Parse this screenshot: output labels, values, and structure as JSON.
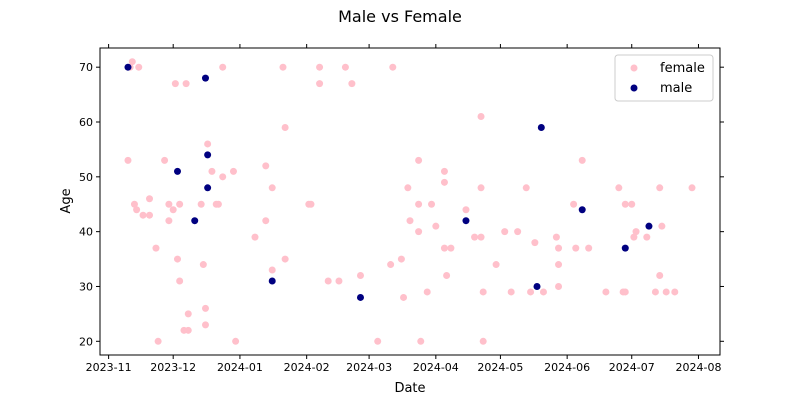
{
  "chart_data": {
    "type": "scatter",
    "title": "Male vs Female",
    "xlabel": "Date",
    "ylabel": "Age",
    "xlim": [
      "2023-10-28",
      "2024-08-11"
    ],
    "ylim": [
      17.5,
      73.5
    ],
    "x_ticks": [
      "2023-11-01",
      "2023-12-01",
      "2024-01-01",
      "2024-02-01",
      "2024-03-01",
      "2024-04-01",
      "2024-05-01",
      "2024-06-01",
      "2024-07-01",
      "2024-08-01"
    ],
    "x_tick_labels": [
      "2023-11",
      "2023-12",
      "2024-01",
      "2024-02",
      "2024-03",
      "2024-04",
      "2024-05",
      "2024-06",
      "2024-07",
      "2024-08"
    ],
    "y_ticks": [
      20,
      30,
      40,
      50,
      60,
      70
    ],
    "y_tick_labels": [
      "20",
      "30",
      "40",
      "50",
      "60",
      "70"
    ],
    "grid": false,
    "legend_position": "top-right",
    "series": [
      {
        "name": "female",
        "color": "#ffc0cb",
        "points": [
          [
            "2023-11-10",
            53
          ],
          [
            "2023-11-11",
            70
          ],
          [
            "2023-11-12",
            71
          ],
          [
            "2023-11-13",
            45
          ],
          [
            "2023-11-14",
            44
          ],
          [
            "2023-11-15",
            70
          ],
          [
            "2023-11-17",
            43
          ],
          [
            "2023-11-20",
            46
          ],
          [
            "2023-11-20",
            43
          ],
          [
            "2023-11-23",
            37
          ],
          [
            "2023-11-24",
            20
          ],
          [
            "2023-11-27",
            53
          ],
          [
            "2023-11-29",
            45
          ],
          [
            "2023-11-29",
            42
          ],
          [
            "2023-12-01",
            44
          ],
          [
            "2023-12-03",
            35
          ],
          [
            "2023-12-02",
            67
          ],
          [
            "2023-12-04",
            45
          ],
          [
            "2023-12-04",
            31
          ],
          [
            "2023-12-06",
            22
          ],
          [
            "2023-12-07",
            67
          ],
          [
            "2023-12-08",
            25
          ],
          [
            "2023-12-08",
            22
          ],
          [
            "2023-12-14",
            45
          ],
          [
            "2023-12-15",
            34
          ],
          [
            "2023-12-16",
            26
          ],
          [
            "2023-12-16",
            23
          ],
          [
            "2023-12-17",
            56
          ],
          [
            "2023-12-19",
            51
          ],
          [
            "2023-12-21",
            45
          ],
          [
            "2023-12-22",
            45
          ],
          [
            "2023-12-24",
            50
          ],
          [
            "2023-12-24",
            70
          ],
          [
            "2023-12-29",
            51
          ],
          [
            "2023-12-30",
            20
          ],
          [
            "2024-01-08",
            39
          ],
          [
            "2024-01-13",
            52
          ],
          [
            "2024-01-13",
            42
          ],
          [
            "2024-01-16",
            48
          ],
          [
            "2024-01-16",
            33
          ],
          [
            "2024-01-21",
            70
          ],
          [
            "2024-01-22",
            59
          ],
          [
            "2024-01-22",
            35
          ],
          [
            "2024-02-02",
            45
          ],
          [
            "2024-02-03",
            45
          ],
          [
            "2024-02-07",
            70
          ],
          [
            "2024-02-07",
            67
          ],
          [
            "2024-02-11",
            31
          ],
          [
            "2024-02-16",
            31
          ],
          [
            "2024-02-19",
            70
          ],
          [
            "2024-02-22",
            67
          ],
          [
            "2024-02-26",
            32
          ],
          [
            "2024-03-05",
            20
          ],
          [
            "2024-03-11",
            34
          ],
          [
            "2024-03-12",
            70
          ],
          [
            "2024-03-16",
            35
          ],
          [
            "2024-03-17",
            28
          ],
          [
            "2024-03-19",
            48
          ],
          [
            "2024-03-20",
            42
          ],
          [
            "2024-03-24",
            53
          ],
          [
            "2024-03-24",
            45
          ],
          [
            "2024-03-24",
            40
          ],
          [
            "2024-03-25",
            20
          ],
          [
            "2024-03-28",
            29
          ],
          [
            "2024-03-30",
            45
          ],
          [
            "2024-04-01",
            41
          ],
          [
            "2024-04-05",
            51
          ],
          [
            "2024-04-05",
            49
          ],
          [
            "2024-04-05",
            37
          ],
          [
            "2024-04-06",
            32
          ],
          [
            "2024-04-08",
            37
          ],
          [
            "2024-04-15",
            44
          ],
          [
            "2024-04-19",
            39
          ],
          [
            "2024-04-22",
            61
          ],
          [
            "2024-04-22",
            48
          ],
          [
            "2024-04-22",
            39
          ],
          [
            "2024-04-23",
            29
          ],
          [
            "2024-04-23",
            20
          ],
          [
            "2024-04-29",
            34
          ],
          [
            "2024-05-03",
            40
          ],
          [
            "2024-05-06",
            29
          ],
          [
            "2024-05-09",
            40
          ],
          [
            "2024-05-13",
            48
          ],
          [
            "2024-05-15",
            29
          ],
          [
            "2024-05-17",
            38
          ],
          [
            "2024-05-21",
            29
          ],
          [
            "2024-05-27",
            39
          ],
          [
            "2024-05-28",
            37
          ],
          [
            "2024-05-28",
            34
          ],
          [
            "2024-05-28",
            30
          ],
          [
            "2024-06-04",
            45
          ],
          [
            "2024-06-05",
            37
          ],
          [
            "2024-06-08",
            53
          ],
          [
            "2024-06-11",
            37
          ],
          [
            "2024-06-19",
            29
          ],
          [
            "2024-06-25",
            48
          ],
          [
            "2024-06-27",
            29
          ],
          [
            "2024-06-28",
            45
          ],
          [
            "2024-06-28",
            29
          ],
          [
            "2024-07-01",
            45
          ],
          [
            "2024-07-02",
            39
          ],
          [
            "2024-07-03",
            40
          ],
          [
            "2024-07-08",
            39
          ],
          [
            "2024-07-12",
            29
          ],
          [
            "2024-07-14",
            48
          ],
          [
            "2024-07-14",
            32
          ],
          [
            "2024-07-15",
            41
          ],
          [
            "2024-07-17",
            29
          ],
          [
            "2024-07-21",
            29
          ],
          [
            "2024-07-29",
            48
          ]
        ]
      },
      {
        "name": "male",
        "color": "#000080",
        "points": [
          [
            "2023-11-10",
            70
          ],
          [
            "2023-12-03",
            51
          ],
          [
            "2023-12-11",
            42
          ],
          [
            "2023-12-16",
            68
          ],
          [
            "2023-12-17",
            54
          ],
          [
            "2023-12-17",
            48
          ],
          [
            "2024-01-16",
            31
          ],
          [
            "2024-02-26",
            28
          ],
          [
            "2024-04-15",
            42
          ],
          [
            "2024-05-18",
            30
          ],
          [
            "2024-05-20",
            59
          ],
          [
            "2024-06-08",
            44
          ],
          [
            "2024-06-28",
            37
          ],
          [
            "2024-07-09",
            41
          ]
        ]
      }
    ]
  }
}
